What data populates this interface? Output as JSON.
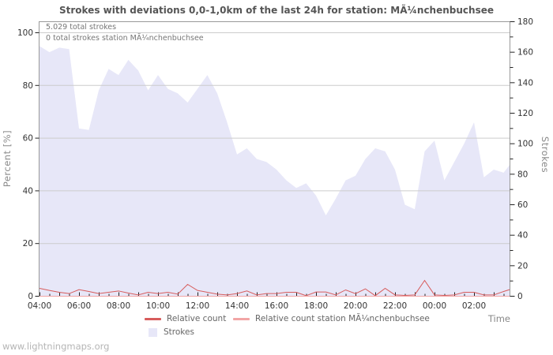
{
  "title": "Strokes with deviations 0,0-1,0km of the last 24h for station: MÃ¼nchenbuchsee",
  "annotations": {
    "total": "5.029 total strokes",
    "station_total": "0 total strokes station MÃ¼nchenbuchsee"
  },
  "watermark": "www.lightningmaps.org",
  "legend": {
    "relative_count": "Relative count",
    "relative_count_station": "Relative count station MÃ¼nchenbuchsee",
    "strokes": "Strokes"
  },
  "colors": {
    "area": "#e7e7f8",
    "relative_count": "#d75c5c",
    "relative_count_station": "#f2a5a5",
    "grid": "#cccccc",
    "border": "#999999",
    "tick": "#222222",
    "tick_label": "#333333"
  },
  "chart_data": {
    "type": "area",
    "title": "Strokes with deviations 0,0-1,0km of the last 24h for station: MÃ¼nchenbuchsee",
    "x_axis": {
      "label": "Time",
      "range_hours": [
        4,
        27.8
      ],
      "tick_hours": [
        4,
        6,
        8,
        10,
        12,
        14,
        16,
        18,
        20,
        22,
        24,
        26
      ],
      "tick_labels": [
        "04:00",
        "06:00",
        "08:00",
        "10:00",
        "12:00",
        "14:00",
        "16:00",
        "18:00",
        "20:00",
        "22:00",
        "00:00",
        "02:00"
      ],
      "minor_tick_step_hours": 0.5
    },
    "y_left": {
      "label": "Percent  [%]",
      "range": [
        0,
        100
      ],
      "ticks": [
        0,
        20,
        40,
        60,
        80,
        100
      ],
      "grid": true
    },
    "y_right": {
      "label": "Strokes",
      "range": [
        0,
        180
      ],
      "ticks": [
        0,
        20,
        40,
        60,
        80,
        100,
        120,
        140,
        160,
        180
      ],
      "minor_step": 10
    },
    "x_hours": [
      4,
      4.5,
      5,
      5.5,
      6,
      6.5,
      7,
      7.5,
      8,
      8.5,
      9,
      9.5,
      10,
      10.5,
      11,
      11.5,
      12,
      12.5,
      13,
      13.5,
      14,
      14.5,
      15,
      15.5,
      16,
      16.5,
      17,
      17.5,
      18,
      18.5,
      19,
      19.5,
      20,
      20.5,
      21,
      21.5,
      22,
      22.5,
      23,
      23.5,
      24,
      24.5,
      25,
      25.5,
      26,
      26.5,
      27,
      27.5,
      27.8
    ],
    "series": [
      {
        "name": "Strokes",
        "type": "area",
        "axis": "right",
        "color": "#e7e7f8",
        "values": [
          164,
          160,
          163,
          162,
          110,
          109,
          135,
          149,
          145,
          155,
          148,
          135,
          145,
          136,
          133,
          127,
          136,
          145,
          133,
          114,
          93,
          97,
          90,
          88,
          83,
          76,
          71,
          74,
          66,
          53,
          64,
          76,
          79,
          90,
          97,
          95,
          83,
          60,
          57,
          95,
          102,
          76,
          88,
          100,
          114,
          78,
          83,
          81,
          86
        ]
      },
      {
        "name": "Relative count",
        "type": "line",
        "axis": "left",
        "color": "#d75c5c",
        "values": [
          3,
          2.2,
          1.5,
          1,
          2.5,
          1.8,
          1,
          1.5,
          2,
          1.2,
          0.5,
          1.5,
          1,
          1.5,
          0.8,
          4.5,
          2.2,
          1.5,
          0.8,
          0.5,
          1,
          2,
          0.5,
          1,
          1,
          1.5,
          1.5,
          0.2,
          1.6,
          1.6,
          0.5,
          2.4,
          1,
          2.8,
          0.2,
          3,
          0.5,
          0.3,
          0.5,
          6,
          0.5,
          0.3,
          0.5,
          1.5,
          1.5,
          0.5,
          0.5,
          1.8,
          2.5
        ]
      },
      {
        "name": "Relative count station MÃ¼nchenbuchsee",
        "type": "line",
        "axis": "left",
        "color": "#f2a5a5",
        "values": [
          0,
          0,
          0,
          0,
          0,
          0,
          0,
          0,
          0,
          0,
          0,
          0,
          0,
          0,
          0,
          0,
          0,
          0,
          0,
          0,
          0,
          0,
          0,
          0,
          0,
          0,
          0,
          0,
          0,
          0,
          0,
          0,
          0,
          0,
          0,
          0,
          0,
          0,
          0,
          0,
          0,
          0,
          0,
          0,
          0,
          0,
          0,
          0,
          0
        ]
      }
    ]
  }
}
